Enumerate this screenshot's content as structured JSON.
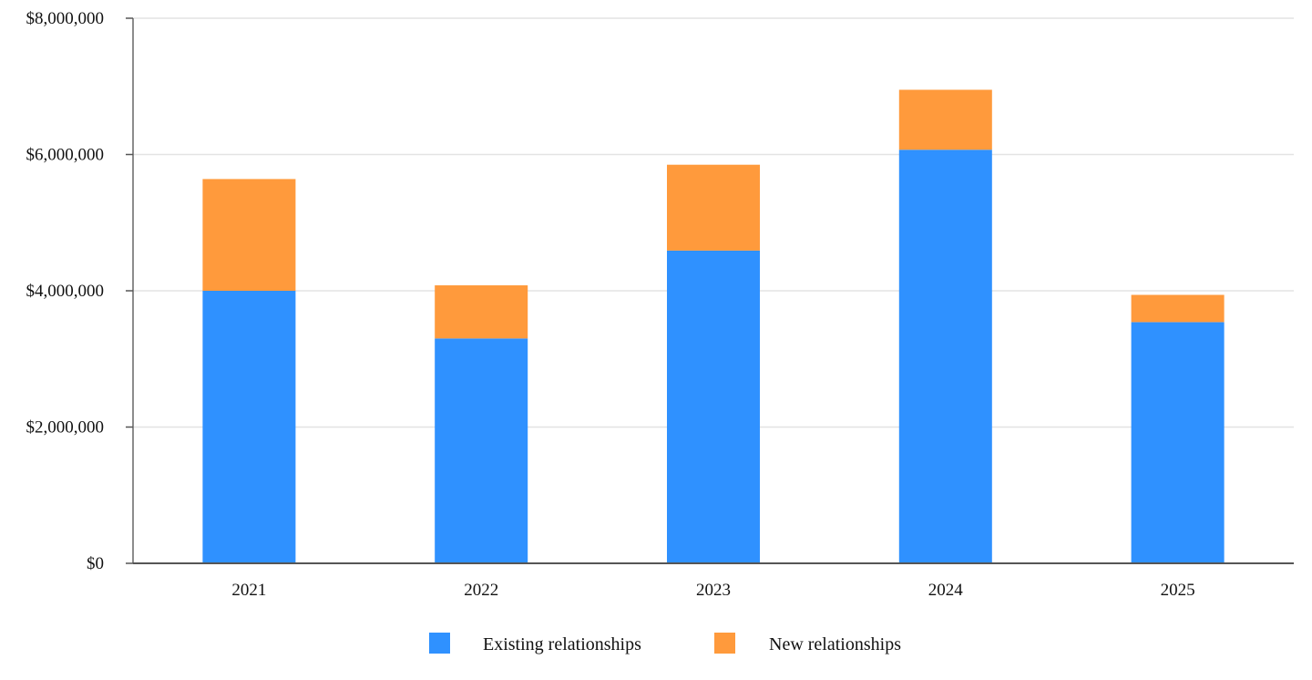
{
  "chart_data": {
    "type": "bar",
    "stacked": true,
    "categories": [
      "2021",
      "2022",
      "2023",
      "2024",
      "2025"
    ],
    "series": [
      {
        "name": "Existing relationships",
        "color": "#2f91ff",
        "values": [
          4000000,
          3300000,
          4590000,
          6070000,
          3540000
        ]
      },
      {
        "name": "New relationships",
        "color": "#ff9a3c",
        "values": [
          1640000,
          780000,
          1260000,
          880000,
          400000
        ]
      }
    ],
    "ylim": [
      0,
      8000000
    ],
    "yticks": [
      0,
      2000000,
      4000000,
      6000000,
      8000000
    ],
    "ytick_labels": [
      "$0",
      "$2,000,000",
      "$4,000,000",
      "$6,000,000",
      "$8,000,000"
    ],
    "grid": true,
    "legend_position": "bottom-center",
    "title": "",
    "xlabel": "",
    "ylabel": ""
  }
}
